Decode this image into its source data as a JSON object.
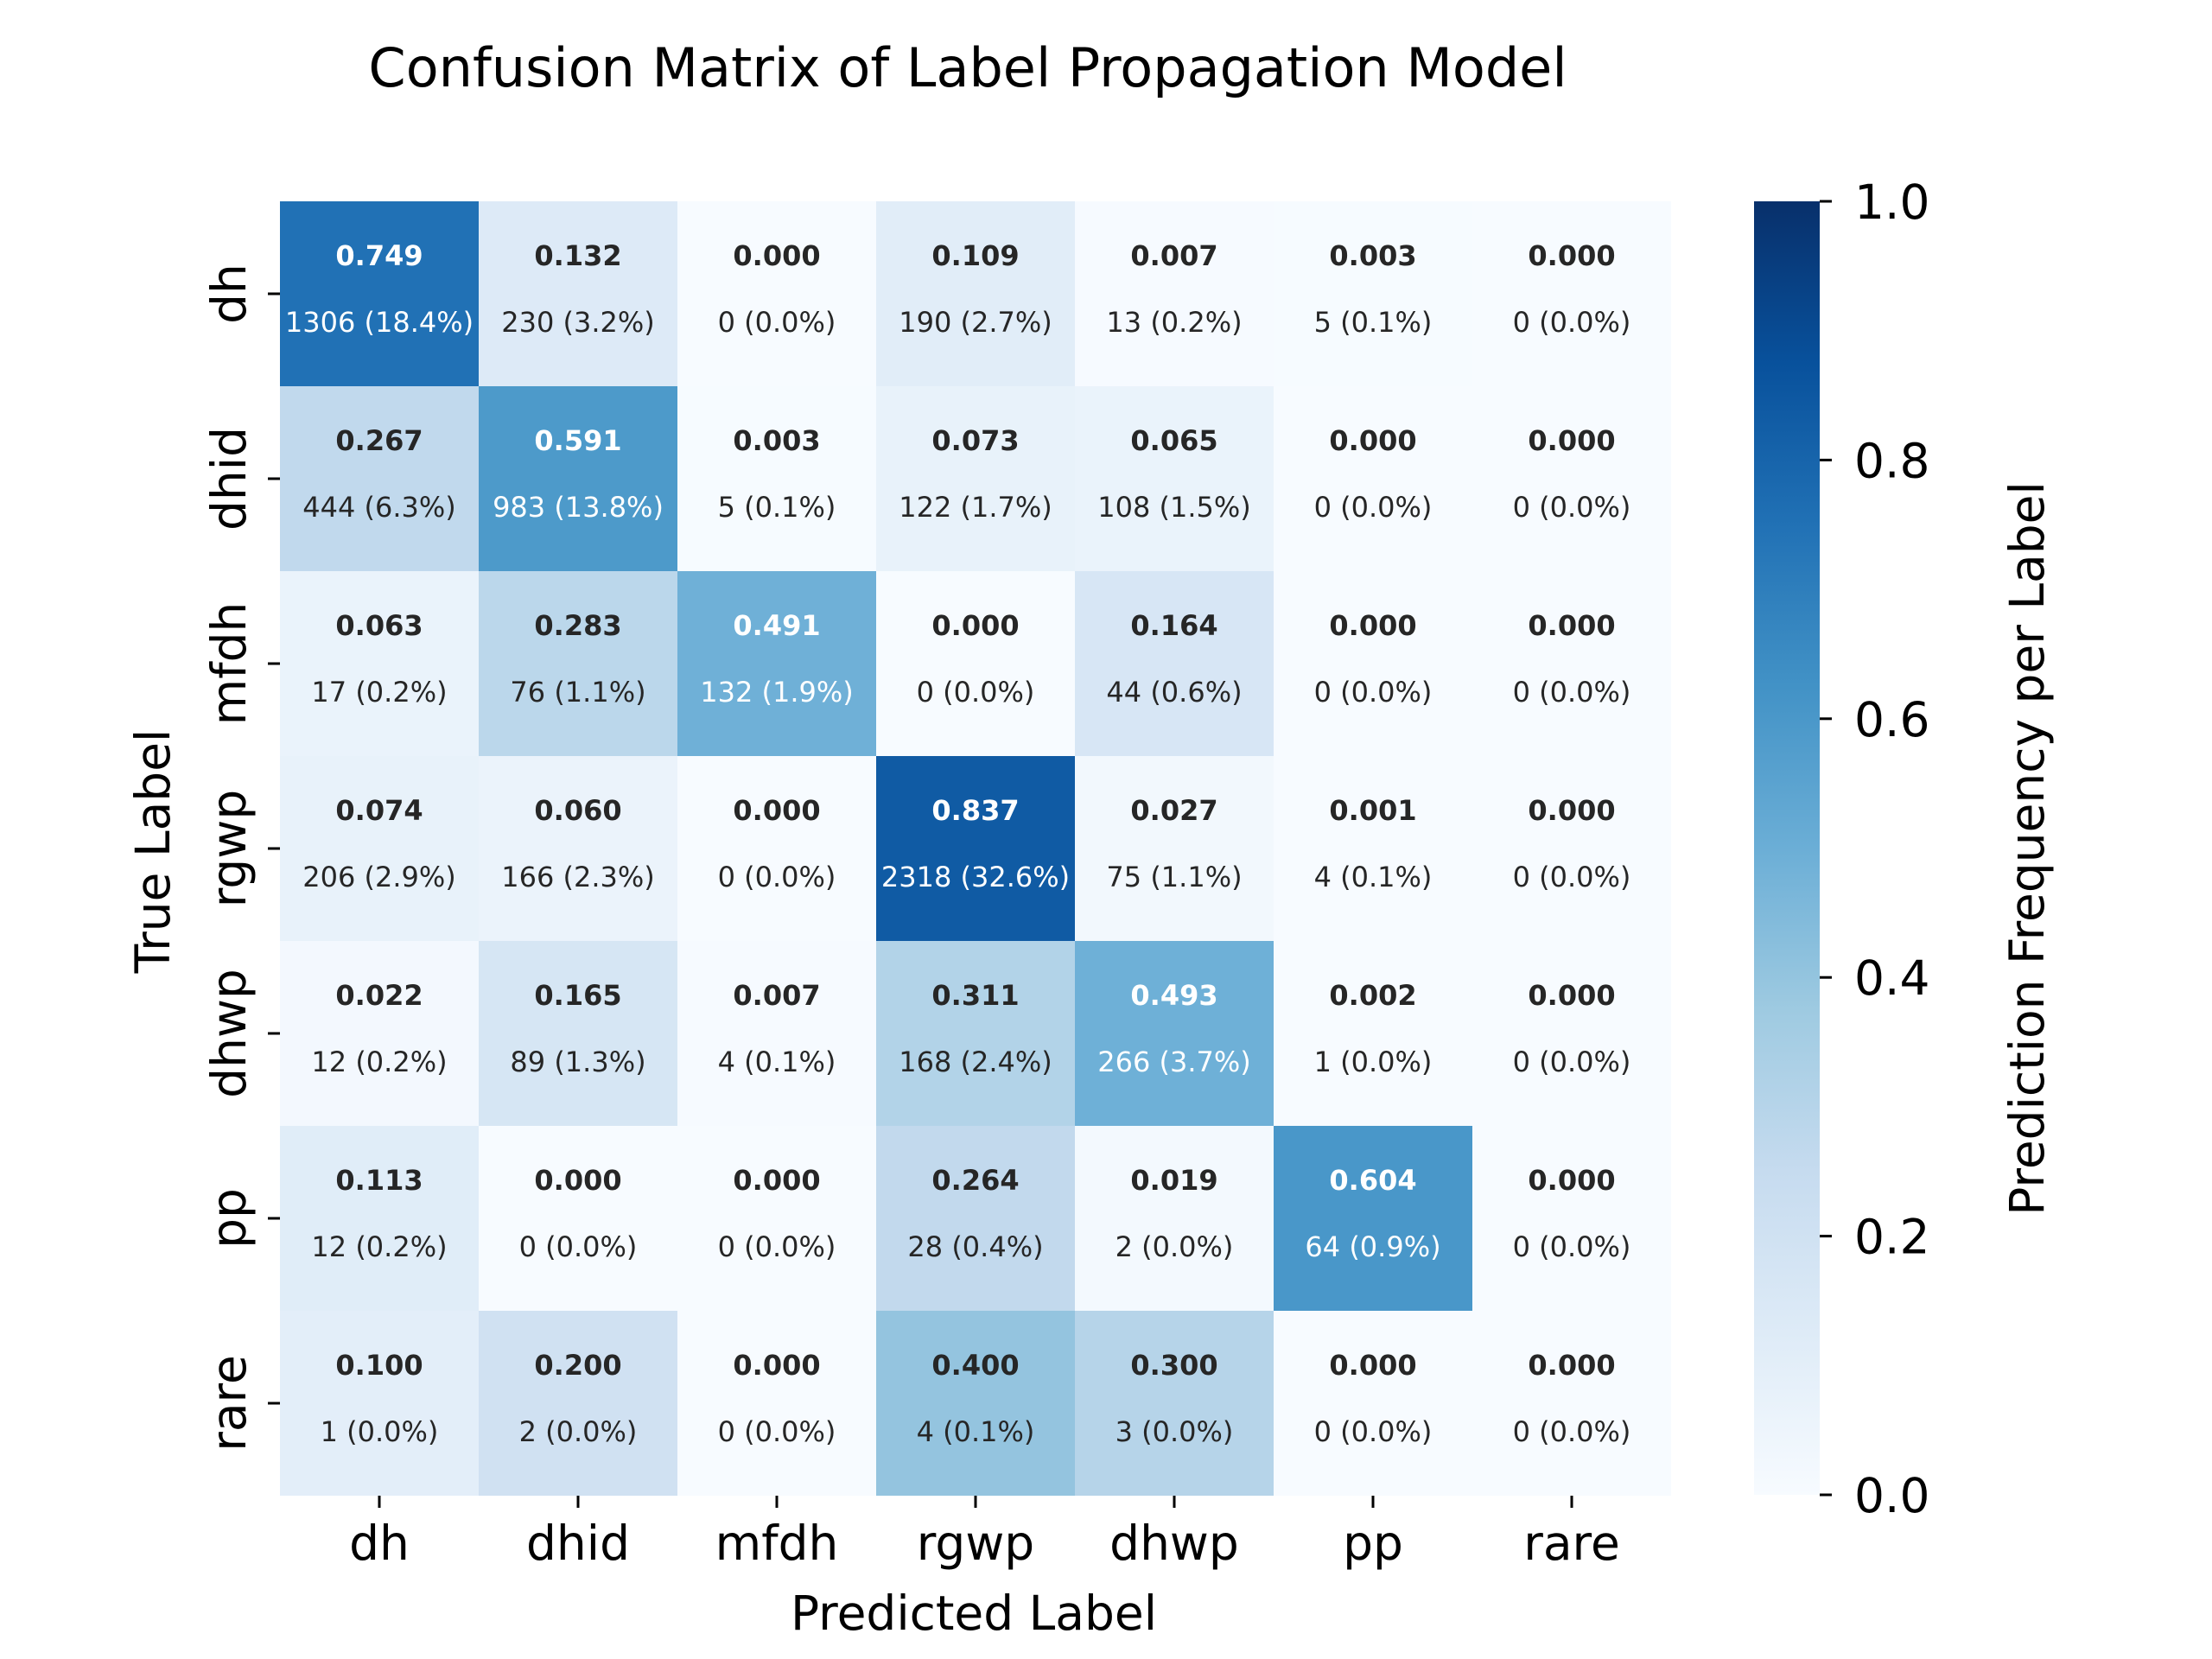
{
  "chart_data": {
    "type": "heatmap",
    "title": "Confusion Matrix of Label Propagation Model",
    "xlabel": "Predicted Label",
    "ylabel": "True Label",
    "x_categories": [
      "dh",
      "dhid",
      "mfdh",
      "rgwp",
      "dhwp",
      "pp",
      "rare"
    ],
    "y_categories": [
      "dh",
      "dhid",
      "mfdh",
      "rgwp",
      "dhwp",
      "pp",
      "rare"
    ],
    "values": [
      [
        0.749,
        0.132,
        0.0,
        0.109,
        0.007,
        0.003,
        0.0
      ],
      [
        0.267,
        0.591,
        0.003,
        0.073,
        0.065,
        0.0,
        0.0
      ],
      [
        0.063,
        0.283,
        0.491,
        0.0,
        0.164,
        0.0,
        0.0
      ],
      [
        0.074,
        0.06,
        0.0,
        0.837,
        0.027,
        0.001,
        0.0
      ],
      [
        0.022,
        0.165,
        0.007,
        0.311,
        0.493,
        0.002,
        0.0
      ],
      [
        0.113,
        0.0,
        0.0,
        0.264,
        0.019,
        0.604,
        0.0
      ],
      [
        0.1,
        0.2,
        0.0,
        0.4,
        0.3,
        0.0,
        0.0
      ]
    ],
    "value_labels": [
      [
        "0.749",
        "0.132",
        "0.000",
        "0.109",
        "0.007",
        "0.003",
        "0.000"
      ],
      [
        "0.267",
        "0.591",
        "0.003",
        "0.073",
        "0.065",
        "0.000",
        "0.000"
      ],
      [
        "0.063",
        "0.283",
        "0.491",
        "0.000",
        "0.164",
        "0.000",
        "0.000"
      ],
      [
        "0.074",
        "0.060",
        "0.000",
        "0.837",
        "0.027",
        "0.001",
        "0.000"
      ],
      [
        "0.022",
        "0.165",
        "0.007",
        "0.311",
        "0.493",
        "0.002",
        "0.000"
      ],
      [
        "0.113",
        "0.000",
        "0.000",
        "0.264",
        "0.019",
        "0.604",
        "0.000"
      ],
      [
        "0.100",
        "0.200",
        "0.000",
        "0.400",
        "0.300",
        "0.000",
        "0.000"
      ]
    ],
    "count_labels": [
      [
        "1306 (18.4%)",
        "230 (3.2%)",
        "0 (0.0%)",
        "190 (2.7%)",
        "13 (0.2%)",
        "5 (0.1%)",
        "0 (0.0%)"
      ],
      [
        "444 (6.3%)",
        "983 (13.8%)",
        "5 (0.1%)",
        "122 (1.7%)",
        "108 (1.5%)",
        "0 (0.0%)",
        "0 (0.0%)"
      ],
      [
        "17 (0.2%)",
        "76 (1.1%)",
        "132 (1.9%)",
        "0 (0.0%)",
        "44 (0.6%)",
        "0 (0.0%)",
        "0 (0.0%)"
      ],
      [
        "206 (2.9%)",
        "166 (2.3%)",
        "0 (0.0%)",
        "2318 (32.6%)",
        "75 (1.1%)",
        "4 (0.1%)",
        "0 (0.0%)"
      ],
      [
        "12 (0.2%)",
        "89 (1.3%)",
        "4 (0.1%)",
        "168 (2.4%)",
        "266 (3.7%)",
        "1 (0.0%)",
        "0 (0.0%)"
      ],
      [
        "12 (0.2%)",
        "0 (0.0%)",
        "0 (0.0%)",
        "28 (0.4%)",
        "2 (0.0%)",
        "64 (0.9%)",
        "0 (0.0%)"
      ],
      [
        "1 (0.0%)",
        "2 (0.0%)",
        "0 (0.0%)",
        "4 (0.1%)",
        "3 (0.0%)",
        "0 (0.0%)",
        "0 (0.0%)"
      ]
    ],
    "colorbar": {
      "label": "Prediction Frequency per Label",
      "range": [
        0.0,
        1.0
      ],
      "ticks": [
        "0.0",
        "0.2",
        "0.4",
        "0.6",
        "0.8",
        "1.0"
      ],
      "colormap": "Blues"
    }
  }
}
